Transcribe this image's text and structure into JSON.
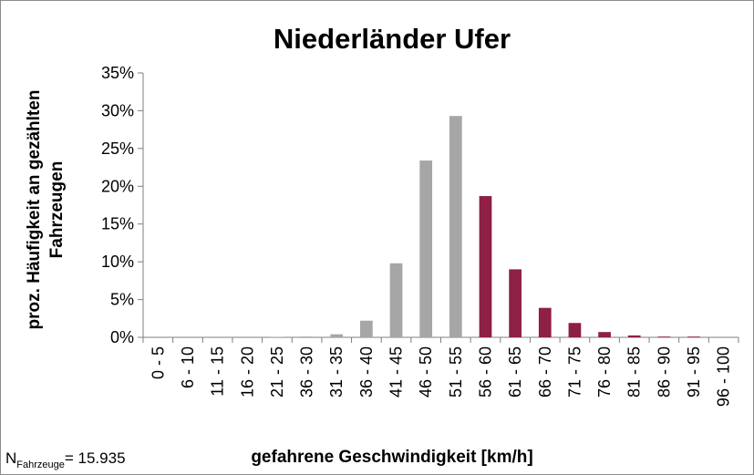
{
  "chart_data": {
    "type": "bar",
    "title": "Niederländer Ufer",
    "xlabel": "gefahrene Geschwindigkeit [km/h]",
    "ylabel": [
      "proz. Häufigkeit an gezählten",
      "Fahrzeugen"
    ],
    "note": {
      "text": "N",
      "subscript": "Fahrzeuge",
      "suffix": "= 15.935"
    },
    "categories": [
      "0 - 5",
      "6 - 10",
      "11 - 15",
      "16 - 20",
      "21 - 25",
      "36 - 30",
      "31 - 35",
      "36 - 40",
      "41 - 45",
      "46 - 50",
      "51 - 55",
      "56 - 60",
      "61 - 65",
      "66 - 70",
      "71 - 75",
      "76 - 80",
      "81 - 85",
      "86 - 90",
      "91 - 95",
      "96 - 100"
    ],
    "values": [
      0,
      0,
      0,
      0,
      0.05,
      0.1,
      0.4,
      2.2,
      9.8,
      23.4,
      29.3,
      18.7,
      9.0,
      3.9,
      1.9,
      0.7,
      0.25,
      0.1,
      0.1,
      0
    ],
    "colors": [
      "#a6a6a6",
      "#a6a6a6",
      "#a6a6a6",
      "#a6a6a6",
      "#a6a6a6",
      "#a6a6a6",
      "#a6a6a6",
      "#a6a6a6",
      "#a6a6a6",
      "#a6a6a6",
      "#a6a6a6",
      "#8e1f45",
      "#8e1f45",
      "#8e1f45",
      "#8e1f45",
      "#8e1f45",
      "#8e1f45",
      "#8e1f45",
      "#8e1f45",
      "#8e1f45"
    ],
    "ylim": [
      0,
      35
    ],
    "yticks": [
      {
        "value": 0,
        "label": "0%"
      },
      {
        "value": 5,
        "label": "5%"
      },
      {
        "value": 10,
        "label": "10%"
      },
      {
        "value": 15,
        "label": "15%"
      },
      {
        "value": 20,
        "label": "20%"
      },
      {
        "value": 25,
        "label": "25%"
      },
      {
        "value": 30,
        "label": "30%"
      },
      {
        "value": 35,
        "label": "35%"
      }
    ],
    "grid": false
  }
}
